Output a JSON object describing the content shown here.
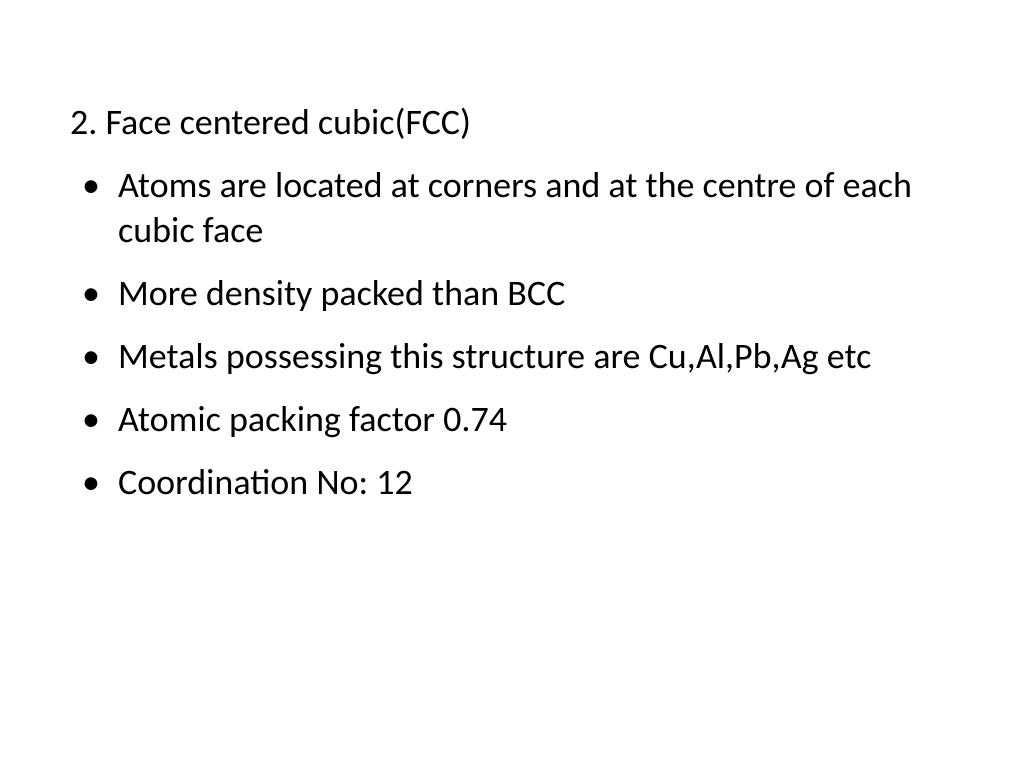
{
  "slide": {
    "background_color": "#ffffff",
    "text_color": "#000000",
    "font_family": "Calibri",
    "heading_fontsize": 36,
    "body_fontsize": 36,
    "heading": "2. Face centered cubic(FCC)",
    "bullets": [
      "Atoms are located at corners and at the centre of each cubic face",
      "More density packed than BCC",
      "Metals possessing this structure are Cu,Al,Pb,Ag etc",
      "Atomic packing factor 0.74",
      "Coordination   No: 12"
    ]
  }
}
